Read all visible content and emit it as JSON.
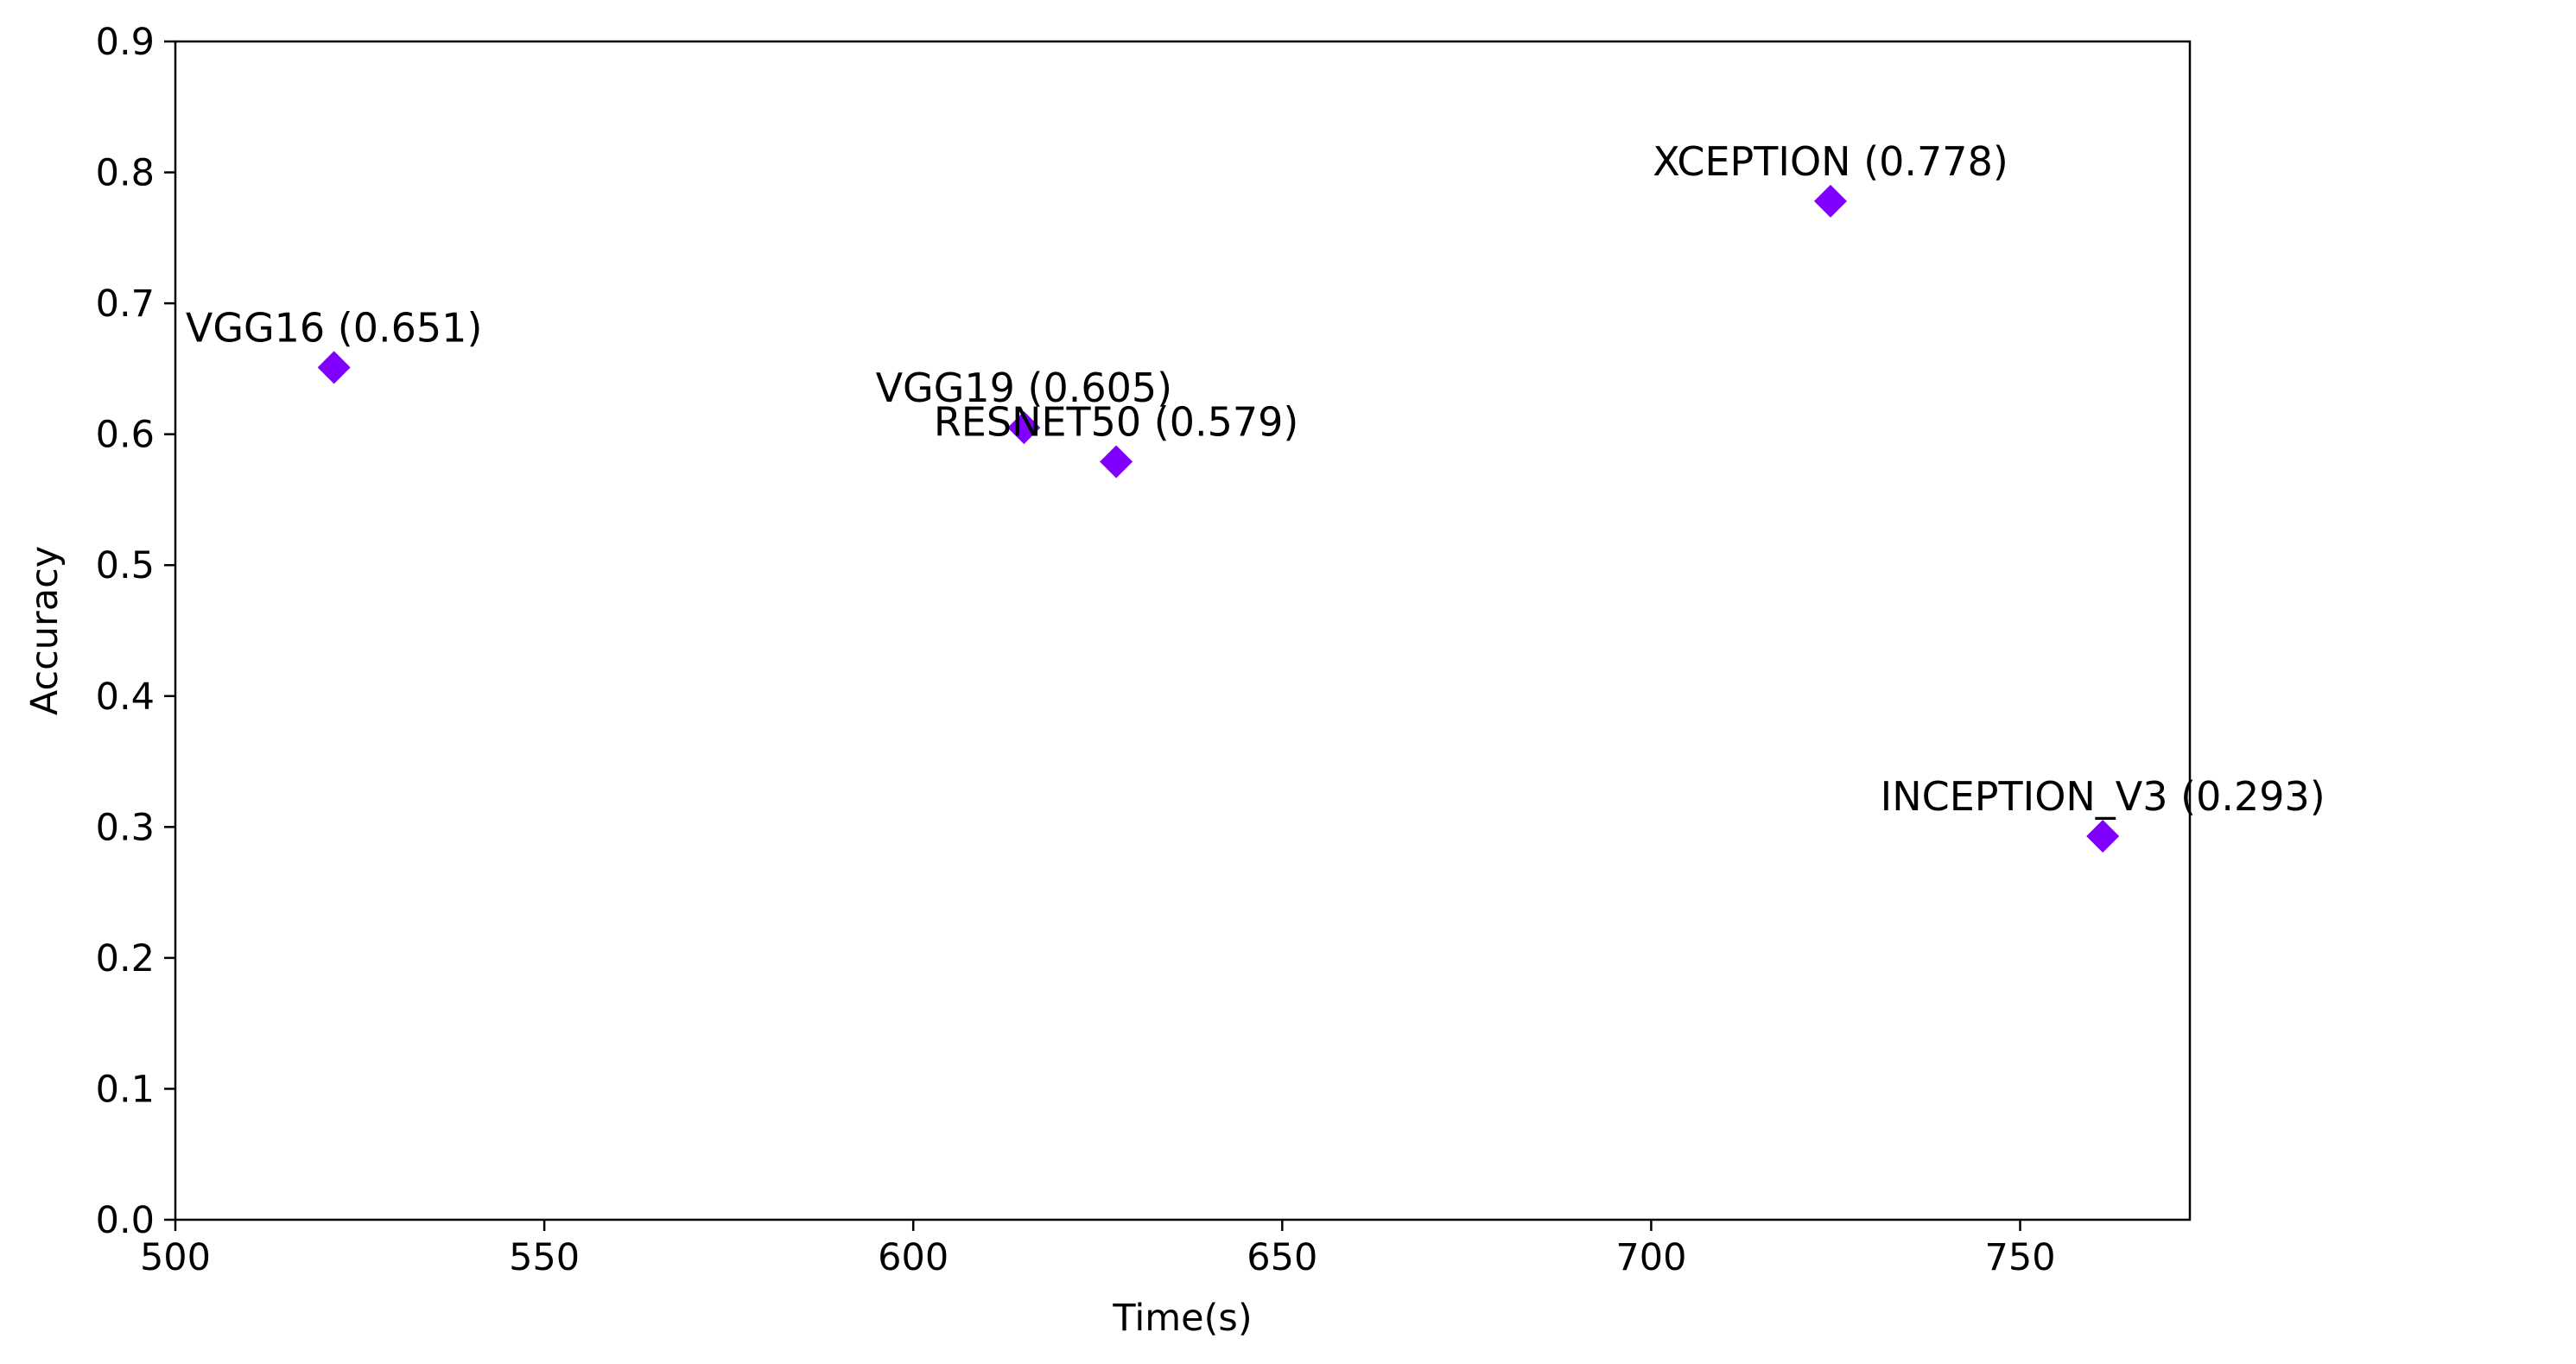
{
  "chart_data": {
    "type": "scatter",
    "title": "",
    "xlabel": "Time(s)",
    "ylabel": "Accuracy",
    "xlim": [
      500,
      773
    ],
    "ylim": [
      0.0,
      0.9
    ],
    "xticks": [
      "500",
      "550",
      "600",
      "650",
      "700",
      "750"
    ],
    "xtick_values": [
      500,
      550,
      600,
      650,
      700,
      750
    ],
    "yticks": [
      "0.0",
      "0.1",
      "0.2",
      "0.3",
      "0.4",
      "0.5",
      "0.6",
      "0.7",
      "0.8",
      "0.9"
    ],
    "ytick_values": [
      0.0,
      0.1,
      0.2,
      0.3,
      0.4,
      0.5,
      0.6,
      0.7,
      0.8,
      0.9
    ],
    "grid": false,
    "marker": "diamond",
    "marker_color": "#7f00ff",
    "points": [
      {
        "label": "VGG16 (0.651)",
        "x": 521.5,
        "y": 0.651
      },
      {
        "label": "VGG19 (0.605)",
        "x": 615,
        "y": 0.605
      },
      {
        "label": "RESNET50 (0.579)",
        "x": 627.5,
        "y": 0.579
      },
      {
        "label": "XCEPTION (0.778)",
        "x": 724.3,
        "y": 0.778
      },
      {
        "label": "INCEPTION_V3 (0.293)",
        "x": 761.2,
        "y": 0.293
      }
    ]
  }
}
